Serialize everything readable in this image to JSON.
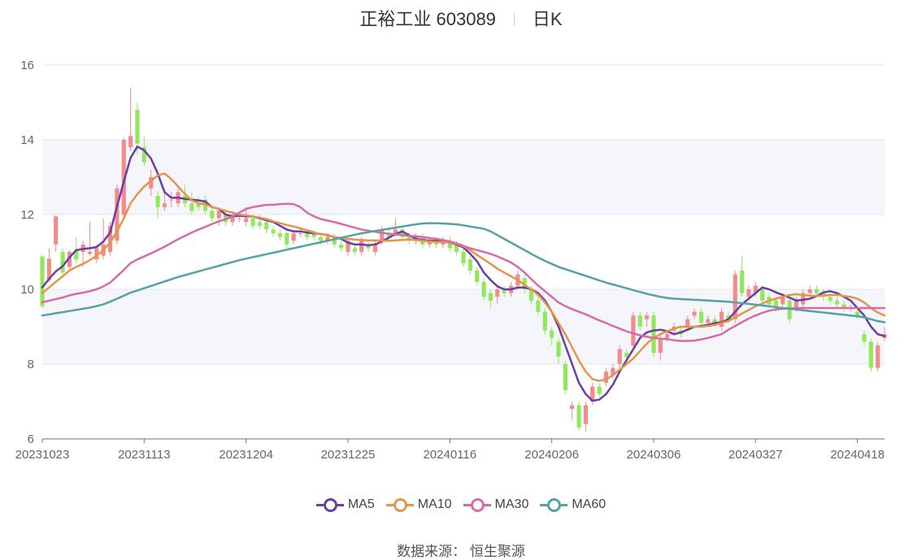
{
  "header": {
    "stock": "正裕工业 603089",
    "period": "日K"
  },
  "source_text": "数据来源： 恒生聚源",
  "colors": {
    "up": "#f28b8b",
    "down": "#91e85a",
    "ma5": "#6a3fa0",
    "ma10": "#e3964a",
    "ma30": "#d96aaa",
    "ma60": "#55a1a4"
  },
  "chart_data": {
    "type": "candlestick",
    "ylim": [
      6,
      16
    ],
    "yticks": [
      6,
      8,
      10,
      12,
      14,
      16
    ],
    "x_tick_labels": [
      "20231023",
      "20231113",
      "20231204",
      "20231225",
      "20240116",
      "20240206",
      "20240306",
      "20240327",
      "20240418"
    ],
    "x_tick_index": [
      0,
      15,
      30,
      45,
      60,
      75,
      90,
      105,
      120
    ],
    "legend": [
      {
        "key": "ma5",
        "name": "MA5"
      },
      {
        "key": "ma10",
        "name": "MA10"
      },
      {
        "key": "ma30",
        "name": "MA30"
      },
      {
        "key": "ma60",
        "name": "MA60"
      }
    ],
    "ohlc": [
      [
        10.88,
        9.55,
        10.92,
        9.5
      ],
      [
        10.25,
        10.82,
        11.1,
        10.2
      ],
      [
        11.2,
        11.95,
        11.98,
        11.0
      ],
      [
        11.0,
        10.45,
        11.1,
        10.4
      ],
      [
        10.6,
        11.0,
        11.05,
        10.5
      ],
      [
        11.05,
        10.8,
        11.4,
        10.7
      ],
      [
        11.0,
        11.2,
        11.3,
        10.6
      ],
      [
        10.95,
        11.0,
        11.8,
        10.9
      ],
      [
        10.8,
        11.1,
        11.2,
        10.7
      ],
      [
        10.9,
        11.2,
        11.9,
        10.8
      ],
      [
        11.0,
        11.7,
        11.8,
        10.9
      ],
      [
        11.3,
        12.7,
        12.8,
        11.2
      ],
      [
        12.0,
        14.0,
        14.05,
        11.9
      ],
      [
        13.8,
        14.1,
        15.4,
        13.7
      ],
      [
        14.8,
        13.9,
        15.0,
        13.6
      ],
      [
        13.8,
        13.4,
        14.1,
        13.3
      ],
      [
        12.7,
        13.0,
        13.2,
        12.5
      ],
      [
        12.5,
        12.2,
        12.6,
        11.9
      ],
      [
        12.2,
        12.3,
        12.7,
        12.1
      ],
      [
        12.4,
        12.4,
        12.6,
        12.2
      ],
      [
        12.3,
        12.6,
        12.7,
        12.2
      ],
      [
        12.5,
        12.3,
        12.8,
        12.2
      ],
      [
        12.3,
        12.1,
        12.6,
        12.0
      ],
      [
        12.3,
        12.2,
        12.5,
        12.1
      ],
      [
        12.4,
        12.1,
        12.5,
        12.0
      ],
      [
        12.1,
        11.9,
        12.2,
        11.8
      ],
      [
        11.9,
        12.1,
        12.2,
        11.7
      ],
      [
        12.0,
        11.8,
        12.1,
        11.7
      ],
      [
        11.8,
        12.0,
        12.1,
        11.7
      ],
      [
        11.9,
        11.9,
        12.0,
        11.8
      ],
      [
        11.8,
        11.9,
        12.2,
        11.7
      ],
      [
        11.9,
        11.7,
        12.0,
        11.6
      ],
      [
        11.8,
        11.7,
        12.0,
        11.6
      ],
      [
        11.8,
        11.6,
        11.9,
        11.5
      ],
      [
        11.6,
        11.5,
        11.7,
        11.4
      ],
      [
        11.5,
        11.4,
        11.6,
        11.3
      ],
      [
        11.5,
        11.2,
        11.6,
        11.1
      ],
      [
        11.3,
        11.5,
        11.6,
        11.2
      ],
      [
        11.5,
        11.5,
        11.6,
        11.4
      ],
      [
        11.5,
        11.4,
        11.6,
        11.3
      ],
      [
        11.5,
        11.4,
        11.6,
        11.3
      ],
      [
        11.4,
        11.3,
        11.5,
        11.2
      ],
      [
        11.3,
        11.4,
        11.5,
        11.2
      ],
      [
        11.4,
        11.2,
        11.5,
        11.1
      ],
      [
        11.2,
        11.1,
        11.3,
        11.0
      ],
      [
        11.0,
        11.3,
        11.4,
        10.9
      ],
      [
        11.1,
        11.0,
        11.2,
        10.9
      ],
      [
        11.0,
        11.3,
        11.4,
        10.9
      ],
      [
        11.2,
        11.1,
        11.3,
        11.0
      ],
      [
        11.0,
        11.2,
        11.3,
        10.9
      ],
      [
        11.3,
        11.6,
        11.7,
        11.2
      ],
      [
        11.5,
        11.4,
        11.6,
        11.3
      ],
      [
        11.5,
        11.6,
        11.9,
        11.4
      ],
      [
        11.6,
        11.4,
        11.7,
        11.3
      ],
      [
        11.4,
        11.3,
        11.5,
        11.2
      ],
      [
        11.3,
        11.4,
        11.5,
        11.2
      ],
      [
        11.4,
        11.2,
        11.5,
        11.1
      ],
      [
        11.2,
        11.3,
        11.4,
        11.1
      ],
      [
        11.3,
        11.2,
        11.4,
        11.1
      ],
      [
        11.2,
        11.3,
        11.4,
        11.1
      ],
      [
        11.3,
        11.1,
        11.4,
        11.0
      ],
      [
        11.2,
        11.0,
        11.3,
        10.9
      ],
      [
        11.0,
        10.7,
        11.1,
        10.6
      ],
      [
        10.8,
        10.5,
        10.9,
        10.4
      ],
      [
        10.5,
        10.2,
        10.6,
        10.1
      ],
      [
        10.2,
        9.8,
        10.3,
        9.7
      ],
      [
        9.9,
        9.7,
        10.0,
        9.5
      ],
      [
        9.8,
        10.0,
        10.1,
        9.6
      ],
      [
        10.0,
        9.9,
        10.1,
        9.8
      ],
      [
        9.9,
        10.1,
        10.2,
        9.8
      ],
      [
        10.1,
        10.4,
        10.5,
        10.0
      ],
      [
        10.3,
        10.0,
        10.4,
        9.9
      ],
      [
        10.0,
        9.7,
        10.1,
        9.6
      ],
      [
        9.7,
        9.4,
        9.8,
        9.3
      ],
      [
        9.4,
        8.9,
        9.5,
        8.8
      ],
      [
        8.9,
        8.7,
        9.0,
        8.5
      ],
      [
        8.6,
        8.2,
        8.7,
        8.0
      ],
      [
        8.0,
        7.3,
        8.1,
        7.2
      ],
      [
        6.8,
        6.9,
        7.0,
        6.5
      ],
      [
        6.9,
        6.3,
        7.0,
        6.2
      ],
      [
        6.4,
        6.9,
        7.0,
        6.2
      ],
      [
        7.0,
        7.4,
        7.5,
        6.9
      ],
      [
        7.4,
        7.2,
        7.5,
        7.1
      ],
      [
        7.5,
        7.8,
        7.9,
        7.4
      ],
      [
        7.7,
        7.9,
        8.0,
        7.6
      ],
      [
        8.0,
        8.4,
        8.5,
        7.9
      ],
      [
        8.3,
        8.2,
        8.4,
        8.1
      ],
      [
        8.5,
        9.3,
        9.4,
        8.4
      ],
      [
        9.3,
        9.0,
        9.4,
        8.9
      ],
      [
        9.2,
        9.3,
        9.4,
        9.0
      ],
      [
        9.3,
        8.3,
        9.4,
        8.2
      ],
      [
        8.3,
        8.7,
        8.8,
        8.1
      ],
      [
        8.7,
        8.8,
        8.9,
        8.6
      ],
      [
        8.9,
        9.0,
        9.1,
        8.8
      ],
      [
        8.9,
        8.8,
        9.0,
        8.7
      ],
      [
        9.0,
        9.2,
        9.3,
        8.9
      ],
      [
        9.3,
        9.4,
        9.5,
        9.2
      ],
      [
        9.4,
        9.1,
        9.5,
        9.0
      ],
      [
        9.1,
        9.2,
        9.3,
        9.0
      ],
      [
        9.2,
        9.1,
        9.3,
        9.0
      ],
      [
        9.0,
        9.4,
        9.5,
        8.9
      ],
      [
        9.3,
        9.2,
        9.4,
        9.1
      ],
      [
        9.2,
        10.4,
        10.5,
        9.1
      ],
      [
        10.5,
        9.9,
        10.9,
        9.8
      ],
      [
        9.8,
        10.0,
        10.1,
        9.7
      ],
      [
        9.9,
        10.1,
        10.2,
        9.8
      ],
      [
        10.0,
        9.7,
        10.1,
        9.6
      ],
      [
        9.8,
        9.6,
        9.9,
        9.5
      ],
      [
        9.7,
        9.5,
        9.8,
        9.4
      ],
      [
        9.6,
        9.8,
        9.9,
        9.5
      ],
      [
        9.7,
        9.2,
        9.8,
        9.1
      ],
      [
        9.5,
        9.7,
        9.8,
        9.4
      ],
      [
        9.6,
        9.9,
        10.0,
        9.5
      ],
      [
        9.9,
        10.0,
        10.1,
        9.8
      ],
      [
        10.0,
        9.9,
        10.1,
        9.8
      ],
      [
        9.9,
        9.8,
        10.0,
        9.7
      ],
      [
        9.8,
        9.7,
        9.9,
        9.6
      ],
      [
        9.7,
        9.6,
        9.8,
        9.5
      ],
      [
        9.6,
        9.5,
        9.7,
        9.4
      ],
      [
        9.5,
        9.5,
        9.6,
        9.4
      ],
      [
        9.4,
        9.3,
        9.5,
        9.2
      ],
      [
        8.8,
        8.6,
        8.9,
        8.5
      ],
      [
        8.6,
        7.9,
        8.7,
        7.8
      ],
      [
        7.9,
        8.5,
        8.6,
        7.8
      ],
      [
        8.7,
        8.8,
        9.0,
        8.6
      ]
    ],
    "ma5": [
      10.05,
      10.28,
      10.48,
      10.62,
      10.85,
      11.05,
      11.08,
      11.1,
      11.13,
      11.28,
      11.52,
      12.22,
      12.88,
      13.52,
      13.82,
      13.72,
      13.5,
      13.1,
      12.6,
      12.45,
      12.45,
      12.42,
      12.4,
      12.38,
      12.35,
      12.2,
      12.15,
      12.0,
      11.95,
      11.97,
      11.95,
      11.95,
      11.9,
      11.85,
      11.8,
      11.7,
      11.6,
      11.55,
      11.55,
      11.52,
      11.5,
      11.48,
      11.45,
      11.4,
      11.35,
      11.25,
      11.2,
      11.2,
      11.18,
      11.2,
      11.28,
      11.38,
      11.48,
      11.55,
      11.45,
      11.35,
      11.32,
      11.3,
      11.3,
      11.28,
      11.25,
      11.2,
      11.12,
      10.95,
      10.75,
      10.45,
      10.25,
      10.08,
      10.0,
      10.0,
      10.05,
      10.05,
      10.0,
      9.9,
      9.7,
      9.4,
      9.0,
      8.5,
      8.0,
      7.5,
      7.2,
      7.02,
      7.05,
      7.2,
      7.45,
      7.8,
      8.1,
      8.4,
      8.7,
      8.85,
      8.9,
      8.92,
      8.88,
      8.8,
      8.85,
      8.92,
      9.0,
      9.02,
      9.05,
      9.1,
      9.12,
      9.2,
      9.4,
      9.6,
      9.75,
      9.9,
      10.05,
      10.0,
      9.92,
      9.85,
      9.78,
      9.7,
      9.72,
      9.75,
      9.82,
      9.92,
      9.95,
      9.9,
      9.8,
      9.7,
      9.5,
      9.3,
      9.0,
      8.8,
      8.75
    ],
    "ma10": [
      9.9,
      10.05,
      10.2,
      10.35,
      10.5,
      10.6,
      10.68,
      10.78,
      10.9,
      11.05,
      11.25,
      11.55,
      11.9,
      12.3,
      12.55,
      12.75,
      12.9,
      13.05,
      13.1,
      12.95,
      12.75,
      12.55,
      12.38,
      12.3,
      12.28,
      12.2,
      12.15,
      12.1,
      12.05,
      12.0,
      11.98,
      11.95,
      11.92,
      11.88,
      11.82,
      11.77,
      11.72,
      11.68,
      11.63,
      11.58,
      11.52,
      11.48,
      11.44,
      11.4,
      11.37,
      11.35,
      11.33,
      11.32,
      11.31,
      11.31,
      11.3,
      11.3,
      11.31,
      11.32,
      11.33,
      11.32,
      11.3,
      11.28,
      11.27,
      11.26,
      11.25,
      11.22,
      11.15,
      11.05,
      10.92,
      10.8,
      10.68,
      10.55,
      10.45,
      10.35,
      10.25,
      10.12,
      10.0,
      9.85,
      9.65,
      9.4,
      9.1,
      8.8,
      8.45,
      8.1,
      7.8,
      7.6,
      7.55,
      7.6,
      7.7,
      7.85,
      8.0,
      8.15,
      8.35,
      8.55,
      8.7,
      8.8,
      8.88,
      8.95,
      9.0,
      9.0,
      9.0,
      9.0,
      9.02,
      9.05,
      9.1,
      9.15,
      9.25,
      9.35,
      9.45,
      9.55,
      9.62,
      9.7,
      9.75,
      9.8,
      9.85,
      9.87,
      9.85,
      9.83,
      9.82,
      9.83,
      9.85,
      9.85,
      9.82,
      9.8,
      9.75,
      9.65,
      9.5,
      9.38,
      9.3
    ],
    "ma30": [
      9.65,
      9.7,
      9.74,
      9.78,
      9.84,
      9.88,
      9.91,
      9.95,
      10.0,
      10.08,
      10.18,
      10.35,
      10.52,
      10.7,
      10.8,
      10.88,
      10.96,
      11.05,
      11.14,
      11.24,
      11.34,
      11.43,
      11.52,
      11.6,
      11.67,
      11.75,
      11.82,
      11.88,
      11.95,
      12.05,
      12.15,
      12.2,
      12.23,
      12.26,
      12.26,
      12.28,
      12.29,
      12.28,
      12.2,
      12.05,
      11.95,
      11.88,
      11.84,
      11.8,
      11.75,
      11.7,
      11.65,
      11.6,
      11.57,
      11.54,
      11.51,
      11.49,
      11.47,
      11.45,
      11.43,
      11.42,
      11.4,
      11.37,
      11.35,
      11.32,
      11.28,
      11.23,
      11.16,
      11.1,
      11.05,
      11.0,
      10.95,
      10.88,
      10.8,
      10.72,
      10.6,
      10.45,
      10.27,
      10.1,
      9.95,
      9.8,
      9.65,
      9.55,
      9.47,
      9.4,
      9.33,
      9.25,
      9.17,
      9.1,
      9.02,
      8.95,
      8.88,
      8.82,
      8.77,
      8.73,
      8.7,
      8.68,
      8.67,
      8.64,
      8.62,
      8.62,
      8.63,
      8.66,
      8.7,
      8.75,
      8.8,
      8.92,
      9.02,
      9.12,
      9.22,
      9.3,
      9.37,
      9.43,
      9.46,
      9.48,
      9.49,
      9.5,
      9.5,
      9.5,
      9.5,
      9.5,
      9.5,
      9.5,
      9.5,
      9.5,
      9.5,
      9.5,
      9.5,
      9.5,
      9.5
    ],
    "ma60": [
      9.3,
      9.33,
      9.36,
      9.39,
      9.42,
      9.45,
      9.48,
      9.51,
      9.55,
      9.6,
      9.67,
      9.75,
      9.83,
      9.91,
      9.97,
      10.03,
      10.09,
      10.15,
      10.21,
      10.27,
      10.33,
      10.38,
      10.43,
      10.48,
      10.53,
      10.58,
      10.63,
      10.68,
      10.73,
      10.78,
      10.82,
      10.86,
      10.9,
      10.94,
      10.98,
      11.02,
      11.06,
      11.1,
      11.14,
      11.18,
      11.22,
      11.26,
      11.3,
      11.34,
      11.38,
      11.42,
      11.46,
      11.5,
      11.53,
      11.56,
      11.59,
      11.62,
      11.65,
      11.68,
      11.71,
      11.74,
      11.76,
      11.77,
      11.77,
      11.76,
      11.75,
      11.74,
      11.71,
      11.68,
      11.65,
      11.62,
      11.55,
      11.45,
      11.35,
      11.25,
      11.15,
      11.05,
      10.95,
      10.85,
      10.76,
      10.68,
      10.6,
      10.54,
      10.48,
      10.42,
      10.36,
      10.3,
      10.24,
      10.18,
      10.13,
      10.08,
      10.03,
      9.98,
      9.93,
      9.88,
      9.84,
      9.8,
      9.77,
      9.75,
      9.74,
      9.73,
      9.72,
      9.71,
      9.7,
      9.69,
      9.68,
      9.67,
      9.65,
      9.63,
      9.61,
      9.59,
      9.57,
      9.55,
      9.52,
      9.5,
      9.48,
      9.46,
      9.44,
      9.42,
      9.4,
      9.38,
      9.36,
      9.34,
      9.32,
      9.3,
      9.28,
      9.25,
      9.2,
      9.15,
      9.12
    ]
  }
}
